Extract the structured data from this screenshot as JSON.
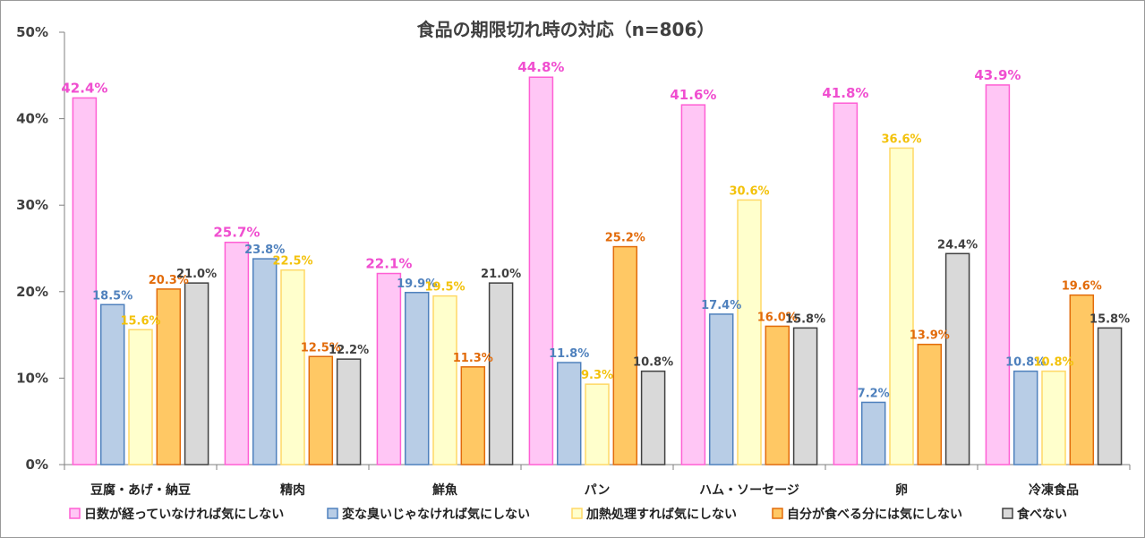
{
  "chart_data": {
    "type": "bar",
    "title": "食品の期限切れ時の対応（n=806）",
    "xlabel": "",
    "ylabel": "",
    "ylim": [
      0,
      50
    ],
    "yticks": [
      "0%",
      "10%",
      "20%",
      "30%",
      "40%",
      "50%"
    ],
    "grid": false,
    "legend_position": "bottom",
    "categories": [
      "豆腐・あげ・納豆",
      "精肉",
      "鮮魚",
      "パン",
      "ハム・ソーセージ",
      "卵",
      "冷凍食品"
    ],
    "series": [
      {
        "name": "日数が経っていなければ気にしない",
        "fill": "#ffc6f5",
        "stroke": "#ff5fd4",
        "label_color": "#f04fd0",
        "label_size": 15,
        "values": [
          42.4,
          25.7,
          22.1,
          44.8,
          41.6,
          41.8,
          43.9
        ],
        "labels": [
          "42.4%",
          "25.7%",
          "22.1%",
          "44.8%",
          "41.6%",
          "41.8%",
          "43.9%"
        ]
      },
      {
        "name": "変な臭いじゃなければ気にしない",
        "fill": "#b8cde6",
        "stroke": "#4f81bd",
        "label_color": "#4f81bd",
        "label_size": 13,
        "values": [
          18.5,
          23.8,
          19.9,
          11.8,
          17.4,
          7.2,
          10.8
        ],
        "labels": [
          "18.5%",
          "23.8%",
          "19.9%",
          "11.8%",
          "17.4%",
          "7.2%",
          "10.8%"
        ]
      },
      {
        "name": "加熱処理すれば気にしない",
        "fill": "#ffffcc",
        "stroke": "#ffd966",
        "label_color": "#f3c20c",
        "label_size": 13,
        "values": [
          15.6,
          22.5,
          19.5,
          9.3,
          30.6,
          36.6,
          10.8
        ],
        "labels": [
          "15.6%",
          "22.5%",
          "19.5%",
          "9.3%",
          "30.6%",
          "36.6%",
          "10.8%"
        ]
      },
      {
        "name": "自分が食べる分には気にしない",
        "fill": "#ffc864",
        "stroke": "#e26b0a",
        "label_color": "#e26b0a",
        "label_size": 13,
        "values": [
          20.3,
          12.5,
          11.3,
          25.2,
          16.0,
          13.9,
          19.6
        ],
        "labels": [
          "20.3%",
          "12.5%",
          "11.3%",
          "25.2%",
          "16.0%",
          "13.9%",
          "19.6%"
        ]
      },
      {
        "name": "食べない",
        "fill": "#d9d9d9",
        "stroke": "#404040",
        "label_color": "#404040",
        "label_size": 13,
        "values": [
          21.0,
          12.2,
          21.0,
          10.8,
          15.8,
          24.4,
          15.8
        ],
        "labels": [
          "21.0%",
          "12.2%",
          "21.0%",
          "10.8%",
          "15.8%",
          "24.4%",
          "15.8%"
        ]
      }
    ]
  }
}
